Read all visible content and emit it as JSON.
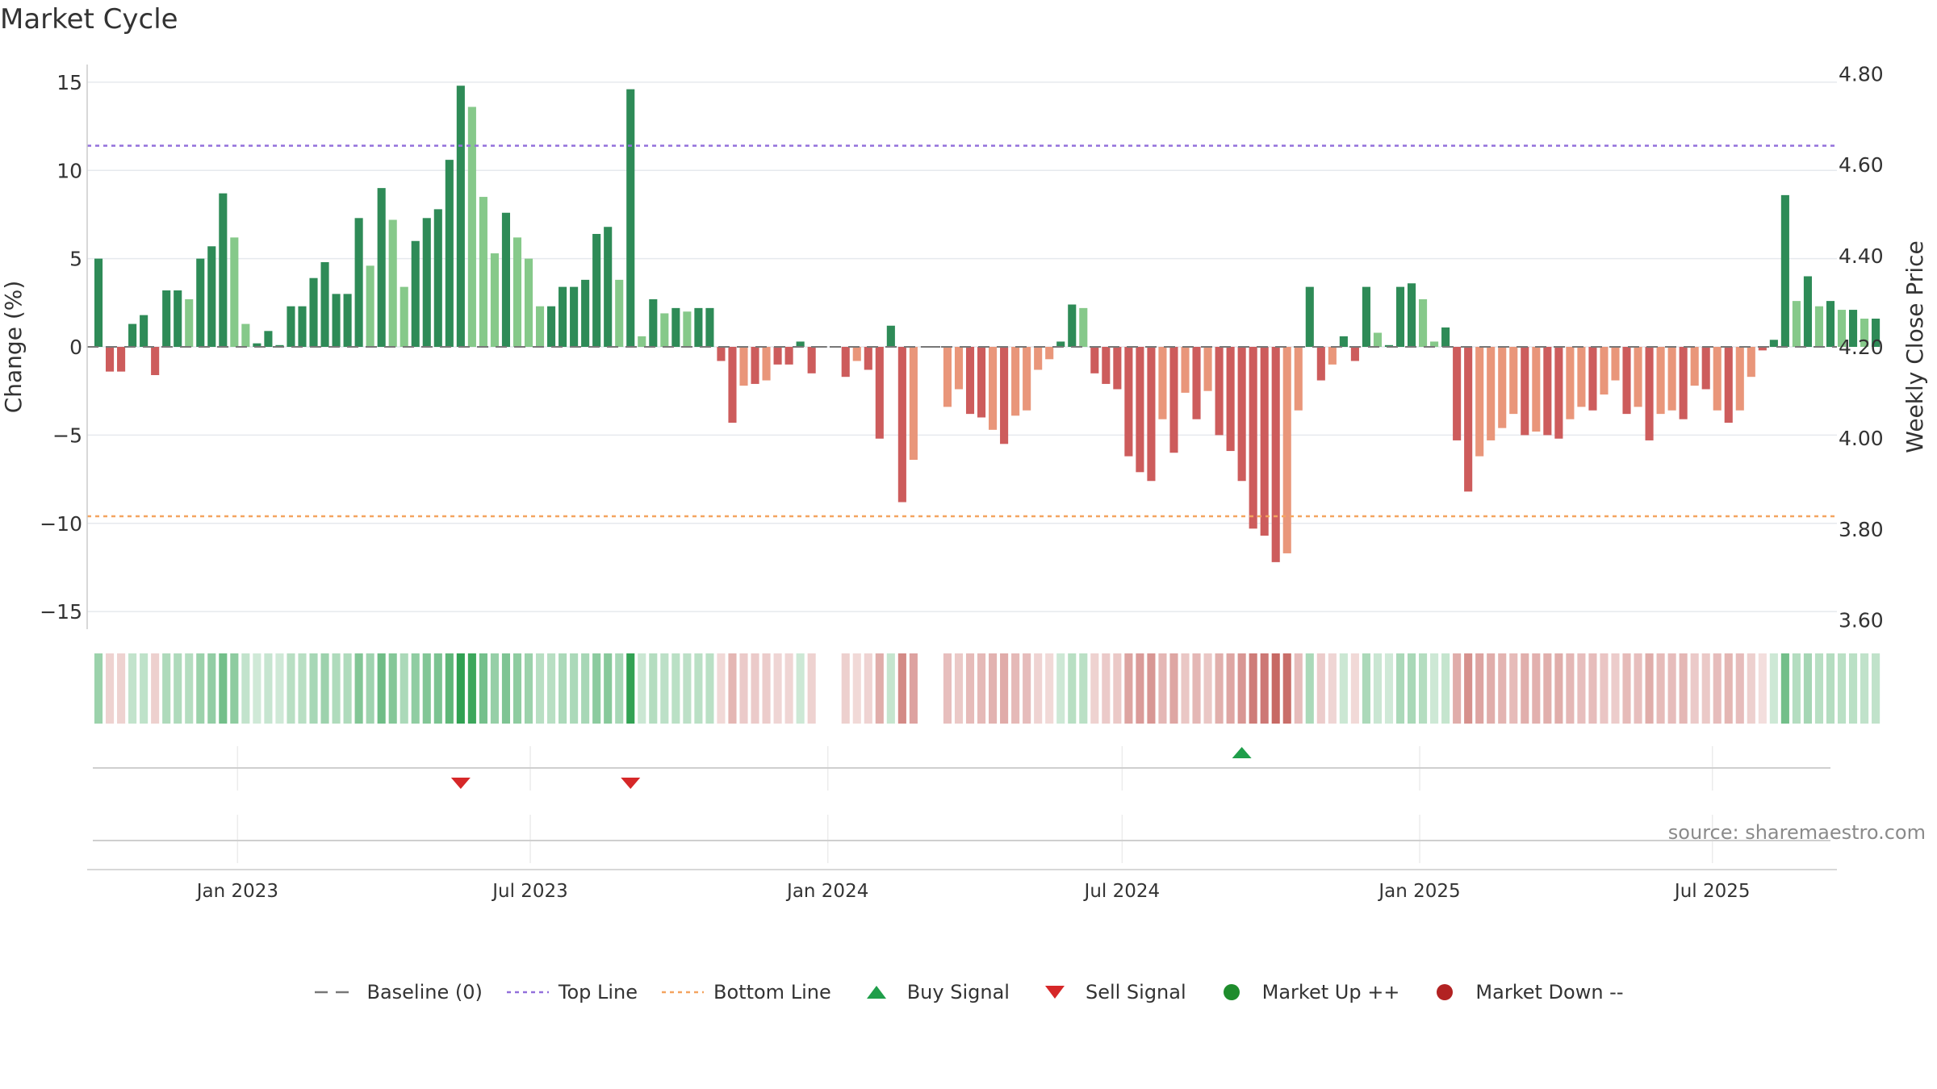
{
  "title": "Market Cycle",
  "source": "source: sharemaestro.com",
  "colors": {
    "up_strong": "#2e8b57",
    "up_light": "#86c98a",
    "down_strong": "#cd5c5c",
    "down_light": "#e9967a",
    "top_line": "#9370db",
    "bottom_line": "#f4a460",
    "baseline": "#777777",
    "buy": "#1f9e4a",
    "sell": "#d62728",
    "market_up": "#1e8c2c",
    "market_down": "#b22222"
  },
  "legend": [
    {
      "key": "baseline",
      "label": "Baseline (0)",
      "icon": "dash-line-icon"
    },
    {
      "key": "top",
      "label": "Top Line",
      "icon": "dotted-line-icon"
    },
    {
      "key": "bottom",
      "label": "Bottom Line",
      "icon": "dotted-line-icon"
    },
    {
      "key": "buy",
      "label": "Buy Signal",
      "icon": "triangle-up-icon"
    },
    {
      "key": "sell",
      "label": "Sell Signal",
      "icon": "triangle-down-icon"
    },
    {
      "key": "mup",
      "label": "Market Up ++",
      "icon": "circle-icon"
    },
    {
      "key": "mdown",
      "label": "Market Down --",
      "icon": "circle-icon"
    }
  ],
  "chart_data": {
    "type": "bar",
    "title": "Market Cycle",
    "ylabel": "Change (%)",
    "y2label": "Weekly Close Price",
    "ylim": [
      -16,
      16
    ],
    "y2lim": [
      3.58,
      4.82
    ],
    "yticks": [
      15,
      10,
      5,
      0,
      -5,
      -10,
      -15
    ],
    "ytick_labels": [
      "15",
      "10",
      "5",
      "0",
      "−5",
      "−10",
      "−15"
    ],
    "y2ticks": [
      4.8,
      4.6,
      4.4,
      4.2,
      4.0,
      3.8,
      3.6
    ],
    "y2tick_labels": [
      "4.80",
      "4.60",
      "4.40",
      "4.20",
      "4.00",
      "3.80",
      "3.60"
    ],
    "top_line": 11.4,
    "bottom_line": -9.6,
    "x_start": "2022-10-07",
    "x_step_days": 7,
    "x_range": [
      "2022-09-30",
      "2025-09-16"
    ],
    "xticks": [
      "2023-01-01",
      "2023-07-01",
      "2024-01-01",
      "2024-07-01",
      "2025-01-01",
      "2025-07-01"
    ],
    "xtick_labels": [
      "Jan 2023",
      "Jul 2023",
      "Jan 2024",
      "Jul 2024",
      "Jan 2025",
      "Jul 2025"
    ],
    "values": [
      5.0,
      -1.4,
      -1.4,
      1.3,
      1.8,
      -1.6,
      3.2,
      3.2,
      2.7,
      5.0,
      5.7,
      8.7,
      6.2,
      1.3,
      0.2,
      0.9,
      0.1,
      2.3,
      2.3,
      3.9,
      4.8,
      3.0,
      3.0,
      7.3,
      4.6,
      9.0,
      7.2,
      3.4,
      6.0,
      7.3,
      7.8,
      10.6,
      14.8,
      13.6,
      8.5,
      5.3,
      7.6,
      6.2,
      5.0,
      2.3,
      2.3,
      3.4,
      3.4,
      3.8,
      6.4,
      6.8,
      3.8,
      14.6,
      0.6,
      2.7,
      1.9,
      2.2,
      2.0,
      2.2,
      2.2,
      -0.8,
      -4.3,
      -2.2,
      -2.1,
      -1.9,
      -1.0,
      -1.0,
      0.3,
      -1.5,
      0.0,
      0.0,
      -1.7,
      -0.8,
      -1.3,
      -5.2,
      1.2,
      -8.8,
      -6.4,
      0.0,
      0.0,
      -3.4,
      -2.4,
      -3.8,
      -4.0,
      -4.7,
      -5.5,
      -3.9,
      -3.6,
      -1.3,
      -0.7,
      0.3,
      2.4,
      2.2,
      -1.5,
      -2.1,
      -2.4,
      -6.2,
      -7.1,
      -7.6,
      -4.1,
      -6.0,
      -2.6,
      -4.1,
      -2.5,
      -5.0,
      -5.9,
      -7.6,
      -10.3,
      -10.7,
      -12.2,
      -11.7,
      -3.6,
      3.4,
      -1.9,
      -1.0,
      0.6,
      -0.8,
      3.4,
      0.8,
      0.1,
      3.4,
      3.6,
      2.7,
      0.3,
      1.1,
      -5.3,
      -8.2,
      -6.2,
      -5.3,
      -4.6,
      -3.8,
      -5.0,
      -4.8,
      -5.0,
      -5.2,
      -4.1,
      -3.4,
      -3.6,
      -2.7,
      -1.9,
      -3.8,
      -3.4,
      -5.3,
      -3.8,
      -3.6,
      -4.1,
      -2.2,
      -2.4,
      -3.6,
      -4.3,
      -3.6,
      -1.7,
      -0.2,
      0.4,
      8.6,
      2.6,
      4.0,
      2.3,
      2.6,
      2.1,
      2.1,
      1.6,
      1.6
    ],
    "intensity": [
      1,
      1,
      1,
      1,
      1,
      1,
      1,
      1,
      0,
      1,
      1,
      1,
      0,
      0,
      1,
      1,
      1,
      1,
      1,
      1,
      1,
      1,
      1,
      1,
      0,
      1,
      0,
      0,
      1,
      1,
      1,
      1,
      1,
      0,
      0,
      0,
      1,
      0,
      0,
      0,
      1,
      1,
      1,
      1,
      1,
      1,
      0,
      1,
      0,
      1,
      0,
      1,
      0,
      1,
      1,
      1,
      1,
      0,
      1,
      0,
      1,
      1,
      1,
      1,
      1,
      0,
      1,
      0,
      1,
      1,
      1,
      1,
      0,
      1,
      1,
      0,
      0,
      1,
      1,
      0,
      1,
      0,
      0,
      0,
      0,
      1,
      1,
      0,
      1,
      1,
      1,
      1,
      1,
      1,
      0,
      1,
      0,
      1,
      0,
      1,
      1,
      1,
      1,
      1,
      1,
      0,
      0,
      1,
      1,
      0,
      1,
      1,
      1,
      0,
      1,
      1,
      1,
      0,
      0,
      1,
      1,
      1,
      0,
      0,
      0,
      0,
      1,
      0,
      1,
      1,
      0,
      0,
      1,
      0,
      0,
      1,
      0,
      1,
      0,
      0,
      1,
      0,
      1,
      0,
      1,
      0,
      0,
      1,
      1,
      1,
      0,
      1,
      0,
      1,
      0,
      1,
      0,
      1
    ],
    "sell_signals": [
      32,
      47
    ],
    "buy_signals": [
      101
    ]
  }
}
